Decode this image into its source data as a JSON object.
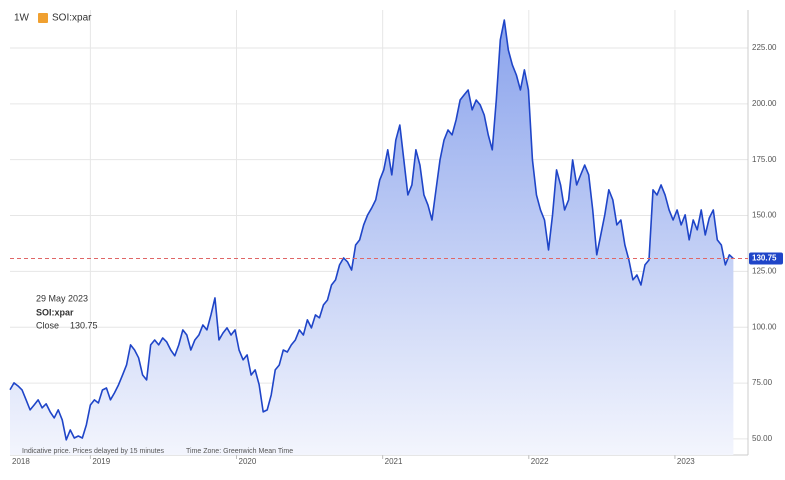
{
  "chart_data": {
    "type": "area-line",
    "interval": "1W",
    "tooltip": {
      "date": "29 May 2023",
      "label": "Close"
    },
    "footer": {
      "delay": "Indicative price. Prices delayed by 15 minutes",
      "timezone": "Time Zone: Greenwich Mean Time"
    },
    "x_start_label": "2018",
    "x": [
      2018.45,
      2018.4775,
      2018.505,
      2018.5325,
      2018.56,
      2018.5875,
      2018.615,
      2018.6425,
      2018.67,
      2018.6975,
      2018.725,
      2018.7525,
      2018.78,
      2018.8075,
      2018.835,
      2018.8625,
      2018.89,
      2018.9175,
      2018.945,
      2018.9725,
      2019.0,
      2019.0275,
      2019.055,
      2019.0825,
      2019.11,
      2019.1375,
      2019.165,
      2019.1925,
      2019.22,
      2019.2475,
      2019.275,
      2019.3025,
      2019.33,
      2019.3575,
      2019.385,
      2019.4125,
      2019.44,
      2019.4675,
      2019.495,
      2019.5225,
      2019.55,
      2019.5775,
      2019.605,
      2019.6325,
      2019.66,
      2019.6875,
      2019.715,
      2019.7425,
      2019.77,
      2019.7975,
      2019.825,
      2019.8525,
      2019.88,
      2019.9075,
      2019.935,
      2019.9625,
      2019.99,
      2020.0175,
      2020.045,
      2020.0725,
      2020.1,
      2020.1275,
      2020.155,
      2020.1825,
      2020.21,
      2020.2375,
      2020.265,
      2020.2925,
      2020.32,
      2020.3475,
      2020.375,
      2020.4025,
      2020.43,
      2020.4575,
      2020.485,
      2020.5125,
      2020.54,
      2020.5675,
      2020.595,
      2020.6225,
      2020.65,
      2020.6775,
      2020.705,
      2020.7325,
      2020.76,
      2020.7875,
      2020.815,
      2020.8425,
      2020.87,
      2020.8975,
      2020.925,
      2020.9525,
      2020.98,
      2021.0075,
      2021.035,
      2021.0625,
      2021.09,
      2021.1175,
      2021.145,
      2021.1725,
      2021.2,
      2021.2275,
      2021.255,
      2021.2825,
      2021.31,
      2021.3375,
      2021.365,
      2021.3925,
      2021.42,
      2021.4475,
      2021.475,
      2021.5025,
      2021.53,
      2021.5575,
      2021.585,
      2021.6125,
      2021.64,
      2021.6675,
      2021.695,
      2021.7225,
      2021.75,
      2021.7775,
      2021.805,
      2021.8325,
      2021.86,
      2021.8875,
      2021.915,
      2021.9425,
      2021.97,
      2021.9975,
      2022.025,
      2022.0525,
      2022.08,
      2022.1075,
      2022.135,
      2022.1625,
      2022.19,
      2022.2175,
      2022.245,
      2022.2725,
      2022.3,
      2022.3275,
      2022.355,
      2022.3825,
      2022.41,
      2022.4375,
      2022.465,
      2022.4925,
      2022.52,
      2022.5475,
      2022.575,
      2022.6025,
      2022.63,
      2022.6575,
      2022.685,
      2022.7125,
      2022.74,
      2022.7675,
      2022.795,
      2022.8225,
      2022.85,
      2022.8775,
      2022.905,
      2022.9325,
      2022.96,
      2022.9875,
      2023.015,
      2023.0425,
      2023.07,
      2023.0975,
      2023.125,
      2023.1525,
      2023.18,
      2023.2075,
      2023.235,
      2023.2625,
      2023.29,
      2023.3175,
      2023.345,
      2023.3725,
      2023.4
    ],
    "series": [
      {
        "name": "SOI:xpar",
        "color": "#1f45c8",
        "fill_top": "#8aa3ec",
        "fill_bottom": "#f3f5fd",
        "values": [
          72.0,
          75.1,
          73.7,
          71.9,
          67.5,
          63.0,
          65.2,
          67.5,
          63.9,
          65.7,
          62.1,
          59.4,
          63.0,
          58.5,
          49.6,
          54.0,
          50.4,
          51.3,
          50.4,
          56.3,
          65.2,
          67.5,
          66.1,
          71.9,
          72.8,
          67.5,
          70.6,
          74.2,
          78.6,
          83.1,
          92.1,
          89.8,
          86.3,
          78.6,
          76.4,
          92.1,
          94.3,
          92.1,
          95.2,
          93.4,
          89.8,
          87.2,
          92.1,
          98.8,
          96.5,
          89.8,
          94.3,
          96.5,
          101.0,
          98.8,
          105.5,
          113.1,
          94.3,
          97.4,
          99.7,
          96.5,
          98.8,
          89.8,
          85.4,
          87.6,
          78.6,
          80.9,
          74.2,
          62.1,
          63.0,
          69.7,
          80.9,
          83.1,
          89.8,
          88.9,
          92.1,
          94.3,
          98.8,
          96.5,
          103.3,
          99.7,
          105.5,
          104.2,
          110.0,
          112.2,
          118.9,
          121.2,
          127.9,
          131.0,
          129.2,
          125.6,
          136.8,
          139.1,
          145.8,
          150.3,
          153.4,
          157.0,
          165.9,
          170.4,
          179.4,
          168.2,
          183.8,
          190.5,
          174.9,
          159.2,
          163.7,
          179.4,
          172.6,
          159.2,
          154.7,
          148.0,
          161.5,
          174.9,
          183.8,
          188.3,
          186.1,
          192.8,
          201.7,
          204.0,
          206.2,
          197.3,
          201.7,
          199.5,
          195.0,
          186.1,
          179.4,
          201.7,
          228.6,
          237.5,
          224.1,
          217.4,
          212.9,
          206.2,
          215.2,
          206.2,
          174.9,
          159.2,
          152.5,
          148.0,
          134.6,
          150.3,
          170.4,
          163.7,
          152.5,
          157.0,
          174.9,
          163.7,
          168.2,
          172.6,
          168.2,
          152.5,
          132.4,
          141.3,
          150.3,
          161.5,
          157.0,
          145.8,
          148.0,
          136.8,
          130.1,
          121.2,
          123.4,
          118.9,
          127.9,
          130.1,
          161.5,
          159.2,
          163.7,
          159.2,
          152.5,
          148.0,
          152.5,
          145.8,
          150.3,
          139.1,
          148.0,
          143.6,
          152.5,
          141.3,
          148.9,
          152.5,
          139.1,
          136.8,
          127.9,
          132.4,
          130.75
        ]
      }
    ],
    "last_line_color": "#e06666",
    "xlim": [
      2018.45,
      2023.5
    ],
    "xticks": [
      2019,
      2020,
      2021,
      2022,
      2023
    ],
    "ylim": [
      42.8,
      242
    ],
    "yticks": [
      {
        "value": 50,
        "label": "50.00"
      },
      {
        "value": 75,
        "label": "75.00"
      },
      {
        "value": 100,
        "label": "100.00"
      },
      {
        "value": 125,
        "label": "125.00"
      },
      {
        "value": 150,
        "label": "150.00"
      },
      {
        "value": 175,
        "label": "175.00"
      },
      {
        "value": 200,
        "label": "200.00"
      },
      {
        "value": 225,
        "label": "225.00"
      }
    ],
    "grid": true
  }
}
